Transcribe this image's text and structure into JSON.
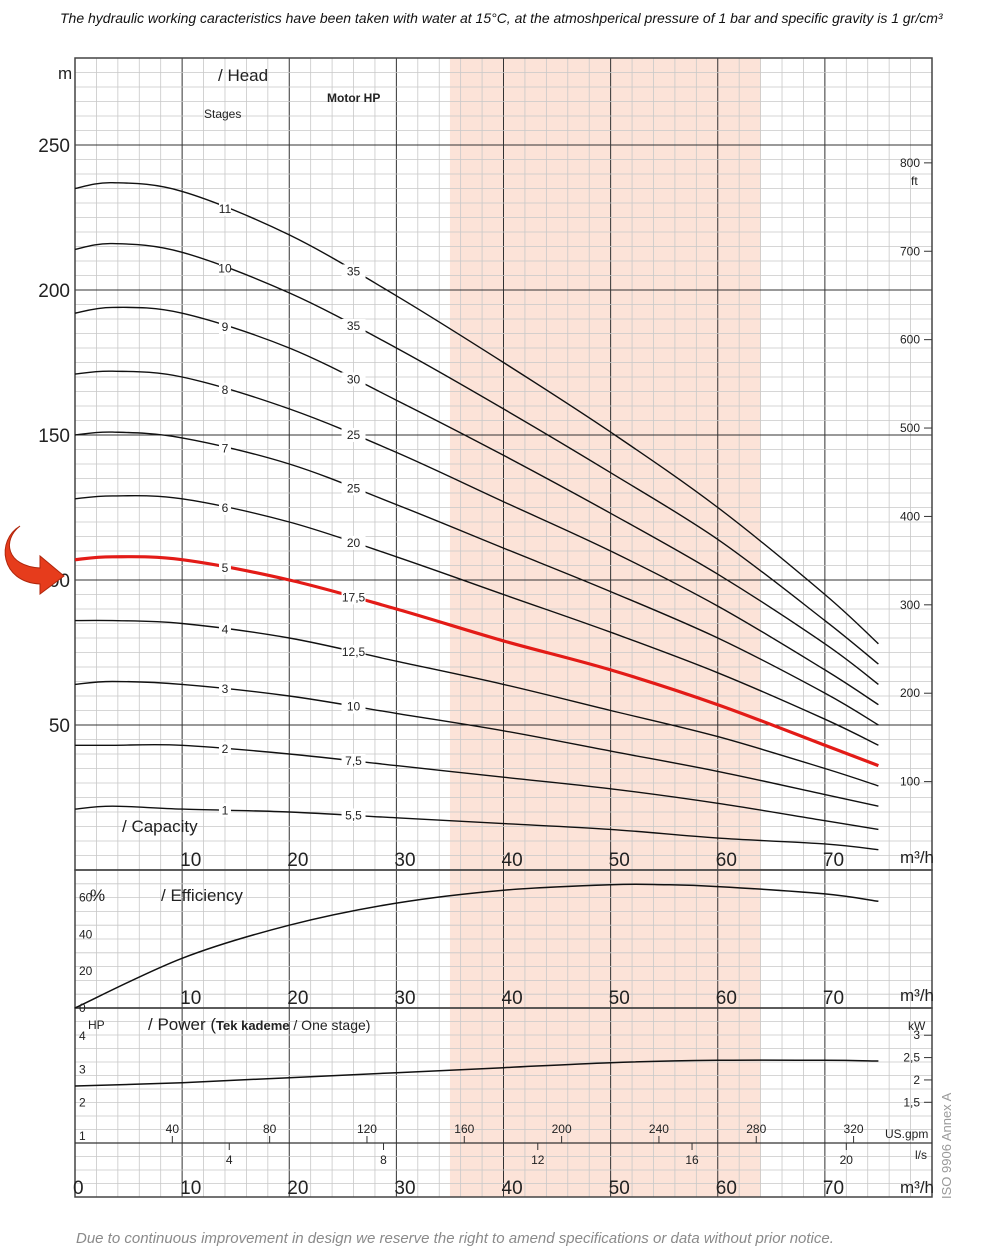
{
  "header_note": "The hydraulic working caracteristics have been taken with water at 15°C, at the atmoshperical pressure of 1 bar and specific gravity is 1 gr/cm³",
  "footer_note": "Due to continuous improvement in design we reserve the right to amend specifications or data without prior notice.",
  "iso_note": "ISO 9906 Annex A",
  "colors": {
    "selected_curve": "#e31b17",
    "curve": "#111111",
    "shade": "#fce3d8",
    "grid": "#c8c8c8",
    "frame": "#444444"
  },
  "labels": {
    "head_unit": "m",
    "head": "/ Head",
    "stages": "Stages",
    "motor_hp": "Motor HP",
    "capacity": "/ Capacity",
    "ft_unit": "ft",
    "m3h": "m³/h",
    "efficiency_unit": "%",
    "efficiency": "/ Efficiency",
    "power_hp": "HP",
    "power": "/ Power",
    "power_bold": "Tek kademe",
    "power_rest": " / One stage)",
    "power_open": "(",
    "kw_unit": "kW",
    "usgpm_unit": "US.gpm",
    "ls_unit": "l/s"
  },
  "chart_data": [
    {
      "type": "line",
      "name": "head",
      "xlabel": "/ Capacity",
      "x_unit": "m³/h",
      "ylabel": "/ Head",
      "y_unit": "m",
      "xlim": [
        0,
        80
      ],
      "ylim": [
        0,
        280
      ],
      "x_ticks": [
        10,
        20,
        30,
        40,
        50,
        60,
        70
      ],
      "y_ticks": [
        50,
        100,
        150,
        200,
        250
      ],
      "ft_ticks": [
        100,
        200,
        300,
        400,
        500,
        600,
        700,
        800
      ],
      "shaded_x_range": [
        35,
        64
      ],
      "grid": true,
      "selected_stage": "5",
      "series": [
        {
          "name": "11",
          "motor_hp": "35",
          "x": [
            0,
            3.5,
            10,
            20,
            30,
            40,
            50,
            60,
            70,
            75
          ],
          "y": [
            235,
            237,
            234,
            219,
            198,
            175,
            151,
            125,
            95,
            78
          ]
        },
        {
          "name": "10",
          "motor_hp": "35",
          "x": [
            0,
            3.5,
            10,
            20,
            30,
            40,
            50,
            60,
            70,
            75
          ],
          "y": [
            214,
            216,
            213,
            199,
            180,
            159,
            137,
            114,
            86,
            71
          ]
        },
        {
          "name": "9",
          "motor_hp": "30",
          "x": [
            0,
            3.5,
            10,
            20,
            30,
            40,
            50,
            60,
            70,
            75
          ],
          "y": [
            192,
            194,
            192,
            180,
            162,
            143,
            123,
            102,
            78,
            64
          ]
        },
        {
          "name": "8",
          "motor_hp": "25",
          "x": [
            0,
            3.5,
            10,
            20,
            30,
            40,
            50,
            60,
            70,
            75
          ],
          "y": [
            171,
            172,
            170,
            159,
            144,
            127,
            110,
            91,
            69,
            57
          ]
        },
        {
          "name": "7",
          "motor_hp": "25",
          "x": [
            0,
            3.5,
            10,
            20,
            30,
            40,
            50,
            60,
            70,
            75
          ],
          "y": [
            150,
            151,
            149,
            140,
            126,
            111,
            96,
            80,
            61,
            50
          ]
        },
        {
          "name": "6",
          "motor_hp": "20",
          "x": [
            0,
            3.5,
            10,
            20,
            30,
            40,
            50,
            60,
            70,
            75
          ],
          "y": [
            128,
            129,
            128,
            120,
            108,
            95,
            82,
            68,
            52,
            43
          ]
        },
        {
          "name": "5",
          "motor_hp": "17,5",
          "x": [
            0,
            3.5,
            10,
            20,
            30,
            40,
            50,
            60,
            70,
            75
          ],
          "y": [
            107,
            108,
            107,
            100,
            90,
            79,
            69,
            57,
            43,
            36
          ]
        },
        {
          "name": "4",
          "motor_hp": "12,5",
          "x": [
            0,
            3.5,
            10,
            20,
            30,
            40,
            50,
            60,
            70,
            75
          ],
          "y": [
            86,
            86,
            85,
            80,
            72,
            64,
            55,
            46,
            35,
            29
          ]
        },
        {
          "name": "3",
          "motor_hp": "10",
          "x": [
            0,
            3.5,
            10,
            20,
            30,
            40,
            50,
            60,
            70,
            75
          ],
          "y": [
            64,
            65,
            64,
            60,
            54,
            48,
            41,
            34,
            26,
            22
          ]
        },
        {
          "name": "2",
          "motor_hp": "7,5",
          "x": [
            0,
            3.5,
            10,
            20,
            30,
            40,
            50,
            60,
            70,
            75
          ],
          "y": [
            43,
            43,
            43,
            40,
            36,
            32,
            28,
            23,
            17,
            14
          ]
        },
        {
          "name": "1",
          "motor_hp": "5,5",
          "x": [
            0,
            3.5,
            10,
            20,
            30,
            40,
            50,
            60,
            70,
            75
          ],
          "y": [
            21,
            22,
            21,
            20,
            18,
            16,
            14,
            11,
            9,
            7
          ]
        }
      ]
    },
    {
      "type": "line",
      "name": "efficiency",
      "ylabel": "/ Efficiency",
      "y_unit": "%",
      "xlim": [
        0,
        80
      ],
      "ylim": [
        0,
        75
      ],
      "y_ticks": [
        0,
        20,
        40,
        60
      ],
      "x_ticks": [
        10,
        20,
        30,
        40,
        50,
        60,
        70
      ],
      "series": [
        {
          "name": "efficiency",
          "x": [
            0,
            10,
            20,
            30,
            40,
            50,
            55,
            60,
            70,
            75
          ],
          "y": [
            0,
            27,
            45,
            57,
            64,
            67,
            67,
            66,
            62,
            58
          ]
        }
      ]
    },
    {
      "type": "line",
      "name": "power",
      "ylabel": "/ Power",
      "y_unit": "HP",
      "xlim": [
        0,
        80
      ],
      "ylim": [
        1,
        4
      ],
      "hp_ticks": [
        1,
        2,
        3,
        4
      ],
      "kw_ticks": [
        "1,5",
        "2",
        "2,5",
        "3"
      ],
      "kw_values": [
        1.5,
        2,
        2.5,
        3
      ],
      "usgpm_ticks": [
        40,
        80,
        120,
        160,
        200,
        240,
        280,
        320
      ],
      "ls_ticks": [
        4,
        8,
        12,
        16,
        20
      ],
      "m3h_ticks": [
        0,
        10,
        20,
        30,
        40,
        50,
        60,
        70
      ],
      "series": [
        {
          "name": "power",
          "x": [
            0,
            10,
            20,
            30,
            40,
            50,
            60,
            70,
            75
          ],
          "y": [
            2.5,
            2.6,
            2.75,
            2.9,
            3.05,
            3.2,
            3.27,
            3.27,
            3.25
          ]
        }
      ]
    }
  ]
}
